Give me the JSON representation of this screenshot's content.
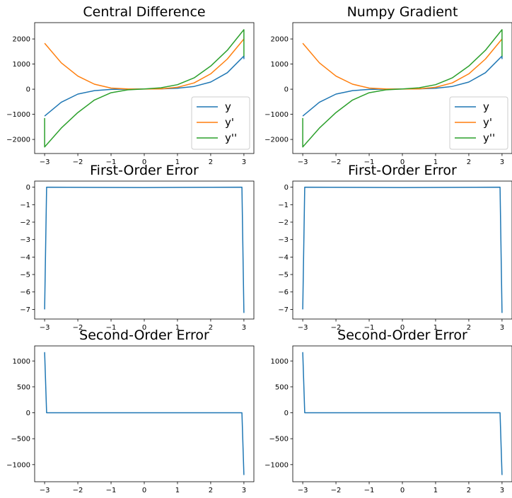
{
  "chart_data": [
    {
      "type": "line",
      "title": "Central Difference",
      "xlim": [
        -3.3,
        3.3
      ],
      "ylim": [
        -2560,
        2650
      ],
      "xticks": [
        -3,
        -2,
        -1,
        0,
        1,
        2,
        3
      ],
      "xtick_labels": [
        "−3",
        "−2",
        "−1",
        "0",
        "1",
        "2",
        "3"
      ],
      "yticks": [
        -2000,
        -1000,
        0,
        1000,
        2000
      ],
      "ytick_labels": [
        "−2000",
        "−1000",
        "0",
        "1000",
        "2000"
      ],
      "legend": "lower-right",
      "series": [
        {
          "name": "y",
          "color": "#1f77b4",
          "x": [
            -3,
            -2.5,
            -2,
            -1.5,
            -1,
            -0.5,
            0,
            0.5,
            1,
            1.5,
            2,
            2.5,
            3,
            3
          ],
          "y": [
            -1070,
            -520,
            -195,
            -55,
            -8,
            3,
            8,
            15,
            40,
            110,
            285,
            655,
            1320,
            1200
          ]
        },
        {
          "name": "y'",
          "color": "#ff7f0e",
          "x": [
            -3,
            -2.5,
            -2,
            -1.5,
            -1,
            -0.5,
            0,
            0.5,
            1,
            1.5,
            2,
            2.5,
            3
          ],
          "y": [
            1830,
            1050,
            520,
            200,
            45,
            8,
            5,
            15,
            75,
            250,
            610,
            1200,
            2000
          ]
        },
        {
          "name": "y''",
          "color": "#2ca02c",
          "x": [
            -3,
            -3,
            -2.5,
            -2,
            -1.5,
            -1,
            -0.5,
            0,
            0.5,
            1,
            1.5,
            2,
            2.5,
            3,
            3
          ],
          "y": [
            -1150,
            -2300,
            -1550,
            -930,
            -430,
            -140,
            -25,
            10,
            55,
            180,
            450,
            920,
            1550,
            2370,
            1310
          ]
        }
      ]
    },
    {
      "type": "line",
      "title": "Numpy Gradient",
      "xlim": [
        -3.3,
        3.3
      ],
      "ylim": [
        -2560,
        2650
      ],
      "xticks": [
        -3,
        -2,
        -1,
        0,
        1,
        2,
        3
      ],
      "xtick_labels": [
        "−3",
        "−2",
        "−1",
        "0",
        "1",
        "2",
        "3"
      ],
      "yticks": [
        -2000,
        -1000,
        0,
        1000,
        2000
      ],
      "ytick_labels": [
        "−2000",
        "−1000",
        "0",
        "1000",
        "2000"
      ],
      "legend": "lower-right",
      "series": [
        {
          "name": "y",
          "color": "#1f77b4",
          "x": [
            -3,
            -2.5,
            -2,
            -1.5,
            -1,
            -0.5,
            0,
            0.5,
            1,
            1.5,
            2,
            2.5,
            3,
            3
          ],
          "y": [
            -1070,
            -520,
            -195,
            -55,
            -8,
            3,
            8,
            15,
            40,
            110,
            285,
            655,
            1320,
            1200
          ]
        },
        {
          "name": "y'",
          "color": "#ff7f0e",
          "x": [
            -3,
            -2.5,
            -2,
            -1.5,
            -1,
            -0.5,
            0,
            0.5,
            1,
            1.5,
            2,
            2.5,
            3
          ],
          "y": [
            1830,
            1050,
            520,
            200,
            45,
            8,
            5,
            15,
            75,
            250,
            610,
            1200,
            2000
          ]
        },
        {
          "name": "y''",
          "color": "#2ca02c",
          "x": [
            -3,
            -3,
            -2.5,
            -2,
            -1.5,
            -1,
            -0.5,
            0,
            0.5,
            1,
            1.5,
            2,
            2.5,
            3,
            3
          ],
          "y": [
            -1150,
            -2300,
            -1550,
            -930,
            -430,
            -140,
            -25,
            10,
            55,
            180,
            450,
            920,
            1550,
            2370,
            1310
          ]
        }
      ]
    },
    {
      "type": "line",
      "title": "First-Order Error",
      "xlim": [
        -3.3,
        3.3
      ],
      "ylim": [
        -7.55,
        0.35
      ],
      "xticks": [
        -3,
        -2,
        -1,
        0,
        1,
        2,
        3
      ],
      "xtick_labels": [
        "−3",
        "−2",
        "−1",
        "0",
        "1",
        "2",
        "3"
      ],
      "yticks": [
        0,
        -1,
        -2,
        -3,
        -4,
        -5,
        -6,
        -7
      ],
      "ytick_labels": [
        "0",
        "−1",
        "−2",
        "−3",
        "−4",
        "−5",
        "−6",
        "−7"
      ],
      "series": [
        {
          "color": "#1f77b4",
          "x": [
            -3,
            -2.94,
            0,
            2.94,
            3
          ],
          "y": [
            -7.0,
            0.0,
            -0.02,
            0.0,
            -7.2
          ]
        }
      ]
    },
    {
      "type": "line",
      "title": "First-Order Error",
      "xlim": [
        -3.3,
        3.3
      ],
      "ylim": [
        -7.55,
        0.35
      ],
      "xticks": [
        -3,
        -2,
        -1,
        0,
        1,
        2,
        3
      ],
      "xtick_labels": [
        "−3",
        "−2",
        "−1",
        "0",
        "1",
        "2",
        "3"
      ],
      "yticks": [
        0,
        -1,
        -2,
        -3,
        -4,
        -5,
        -6,
        -7
      ],
      "ytick_labels": [
        "0",
        "−1",
        "−2",
        "−3",
        "−4",
        "−5",
        "−6",
        "−7"
      ],
      "series": [
        {
          "color": "#1f77b4",
          "x": [
            -3,
            -2.94,
            0,
            2.94,
            3
          ],
          "y": [
            -7.0,
            0.0,
            -0.02,
            0.0,
            -7.2
          ]
        }
      ]
    },
    {
      "type": "line",
      "title": "Second-Order Error",
      "xlim": [
        -3.3,
        3.3
      ],
      "ylim": [
        -1330,
        1290
      ],
      "xticks": [
        -3,
        -2,
        -1,
        0,
        1,
        2,
        3
      ],
      "xtick_labels": [
        "−3",
        "−2",
        "−1",
        "0",
        "1",
        "2",
        "3"
      ],
      "yticks": [
        1000,
        500,
        0,
        -500,
        -1000
      ],
      "ytick_labels": [
        "1000",
        "500",
        "0",
        "−500",
        "−1000"
      ],
      "series": [
        {
          "color": "#1f77b4",
          "x": [
            -3,
            -2.94,
            2.94,
            3
          ],
          "y": [
            1170,
            0,
            0,
            -1200
          ]
        }
      ]
    },
    {
      "type": "line",
      "title": "Second-Order Error",
      "xlim": [
        -3.3,
        3.3
      ],
      "ylim": [
        -1330,
        1290
      ],
      "xticks": [
        -3,
        -2,
        -1,
        0,
        1,
        2,
        3
      ],
      "xtick_labels": [
        "−3",
        "−2",
        "−1",
        "0",
        "1",
        "2",
        "3"
      ],
      "yticks": [
        1000,
        500,
        0,
        -500,
        -1000
      ],
      "ytick_labels": [
        "1000",
        "500",
        "0",
        "−500",
        "−1000"
      ],
      "series": [
        {
          "color": "#1f77b4",
          "x": [
            -3,
            -2.94,
            2.94,
            3
          ],
          "y": [
            1170,
            0,
            0,
            -1200
          ]
        }
      ]
    }
  ]
}
